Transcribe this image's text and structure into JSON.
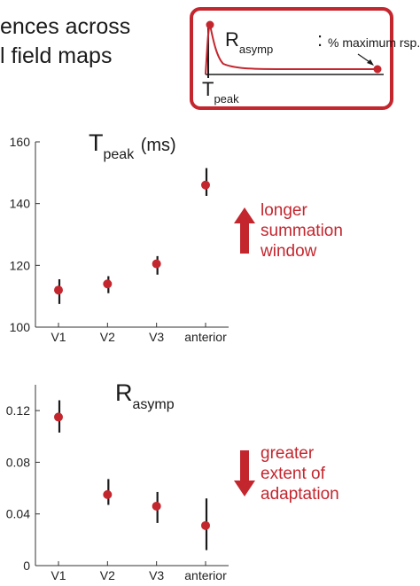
{
  "heading": {
    "line1": "ences across",
    "line2": "l field maps"
  },
  "inset": {
    "r_main": "R",
    "r_sub": "asymp",
    "colon": ":",
    "r_desc": "% maximum rsp.",
    "t_main": "T",
    "t_sub": "peak"
  },
  "annotations": {
    "upper": [
      "longer",
      "summation",
      "window"
    ],
    "lower": [
      "greater",
      "extent of",
      "adaptation"
    ]
  },
  "colors": {
    "accent": "#c4262e",
    "marker": "#c4262e",
    "errorbar": "#1a1a1a",
    "axis": "#333333"
  },
  "icons": {
    "upper": "up-arrow-icon",
    "lower": "down-arrow-icon"
  },
  "chart_data": [
    {
      "type": "scatter",
      "title_main": "T",
      "title_sub": "peak",
      "title_unit": "(ms)",
      "categories": [
        "V1",
        "V2",
        "V3",
        "anterior"
      ],
      "values": [
        112,
        114,
        120.5,
        146
      ],
      "err_low": [
        107.5,
        111,
        117,
        142.5
      ],
      "err_high": [
        115.5,
        116.5,
        123,
        151.5
      ],
      "ylim": [
        100,
        160
      ],
      "yticks": [
        100,
        120,
        140,
        160
      ],
      "ytick_labels": [
        "100",
        "120",
        "140",
        "160"
      ]
    },
    {
      "type": "scatter",
      "title_main": "R",
      "title_sub": "asymp",
      "title_unit": "",
      "categories": [
        "V1",
        "V2",
        "V3",
        "anterior"
      ],
      "values": [
        0.115,
        0.055,
        0.046,
        0.031
      ],
      "err_low": [
        0.103,
        0.047,
        0.033,
        0.012
      ],
      "err_high": [
        0.128,
        0.067,
        0.057,
        0.052
      ],
      "ylim": [
        0,
        0.14
      ],
      "yticks": [
        0,
        0.04,
        0.08,
        0.12
      ],
      "ytick_labels": [
        "0",
        "0.04",
        "0.08",
        "0.12"
      ]
    }
  ]
}
